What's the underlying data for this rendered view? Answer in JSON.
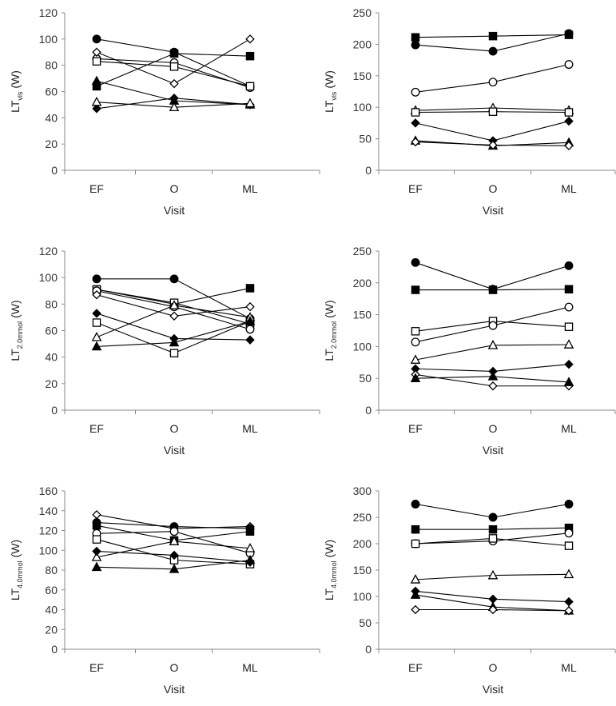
{
  "figure": {
    "categories": [
      "EF",
      "O",
      "ML"
    ]
  },
  "chart_data": [
    {
      "type": "line",
      "panel": "top-left",
      "ylabel_main": "LT",
      "ylabel_sub": "vis",
      "ylabel_unit": " (W)",
      "xlabel": "Visit",
      "ylim": [
        0,
        120
      ],
      "yticks": [
        "0",
        "20",
        "40",
        "60",
        "80",
        "100",
        "120"
      ],
      "categories": [
        "EF",
        "O",
        "ML"
      ],
      "series": [
        {
          "name": "filled-circle",
          "marker": "circle",
          "filled": true,
          "values": [
            100,
            90,
            64
          ]
        },
        {
          "name": "filled-square",
          "marker": "square",
          "filled": true,
          "values": [
            64,
            89,
            87
          ]
        },
        {
          "name": "open-circle",
          "marker": "circle",
          "filled": false,
          "values": [
            85,
            82,
            63
          ]
        },
        {
          "name": "open-square",
          "marker": "square",
          "filled": false,
          "values": [
            83,
            79,
            64
          ]
        },
        {
          "name": "open-diamond",
          "marker": "diamond",
          "filled": false,
          "values": [
            90,
            66,
            100
          ]
        },
        {
          "name": "filled-diamond",
          "marker": "diamond",
          "filled": true,
          "values": [
            47,
            55,
            50
          ]
        },
        {
          "name": "filled-triangle",
          "marker": "triangle",
          "filled": true,
          "values": [
            68,
            53,
            50
          ]
        },
        {
          "name": "open-triangle",
          "marker": "triangle",
          "filled": false,
          "values": [
            52,
            48,
            51
          ]
        }
      ]
    },
    {
      "type": "line",
      "panel": "top-right",
      "ylabel_main": "LT",
      "ylabel_sub": "vis",
      "ylabel_unit": " (W)",
      "xlabel": "Visit",
      "ylim": [
        0,
        250
      ],
      "yticks": [
        "0",
        "50",
        "100",
        "150",
        "200",
        "250"
      ],
      "categories": [
        "EF",
        "O",
        "ML"
      ],
      "series": [
        {
          "name": "filled-square",
          "marker": "square",
          "filled": true,
          "values": [
            211,
            213,
            215
          ]
        },
        {
          "name": "filled-circle",
          "marker": "circle",
          "filled": true,
          "values": [
            199,
            189,
            217
          ]
        },
        {
          "name": "open-circle",
          "marker": "circle",
          "filled": false,
          "values": [
            124,
            140,
            168
          ]
        },
        {
          "name": "open-triangle",
          "marker": "triangle",
          "filled": false,
          "values": [
            95,
            99,
            95
          ]
        },
        {
          "name": "open-square",
          "marker": "square",
          "filled": false,
          "values": [
            92,
            93,
            92
          ]
        },
        {
          "name": "filled-diamond",
          "marker": "diamond",
          "filled": true,
          "values": [
            75,
            47,
            78
          ]
        },
        {
          "name": "filled-triangle",
          "marker": "triangle",
          "filled": true,
          "values": [
            47,
            39,
            44
          ]
        },
        {
          "name": "open-diamond",
          "marker": "diamond",
          "filled": false,
          "values": [
            45,
            40,
            39
          ]
        }
      ]
    },
    {
      "type": "line",
      "panel": "middle-left",
      "ylabel_main": "LT",
      "ylabel_sub": "2.0mmol",
      "ylabel_unit": " (W)",
      "xlabel": "Visit",
      "ylim": [
        0,
        120
      ],
      "yticks": [
        "0",
        "20",
        "40",
        "60",
        "80",
        "100",
        "120"
      ],
      "categories": [
        "EF",
        "O",
        "ML"
      ],
      "series": [
        {
          "name": "filled-circle",
          "marker": "circle",
          "filled": true,
          "values": [
            99,
            99,
            69
          ]
        },
        {
          "name": "filled-square",
          "marker": "square",
          "filled": true,
          "values": [
            91,
            80,
            92
          ]
        },
        {
          "name": "open-square",
          "marker": "square",
          "filled": false,
          "values": [
            91,
            81,
            65
          ]
        },
        {
          "name": "open-circle",
          "marker": "circle",
          "filled": false,
          "values": [
            90,
            78,
            61
          ]
        },
        {
          "name": "open-diamond",
          "marker": "diamond",
          "filled": false,
          "values": [
            87,
            71,
            78
          ]
        },
        {
          "name": "filled-diamond",
          "marker": "diamond",
          "filled": true,
          "values": [
            73,
            54,
            53
          ]
        },
        {
          "name": "open-square-2",
          "marker": "square",
          "filled": false,
          "values": [
            66,
            43,
            67
          ]
        },
        {
          "name": "open-triangle",
          "marker": "triangle",
          "filled": false,
          "values": [
            55,
            79,
            70
          ]
        },
        {
          "name": "filled-triangle",
          "marker": "triangle",
          "filled": true,
          "values": [
            48,
            51,
            67
          ]
        }
      ]
    },
    {
      "type": "line",
      "panel": "middle-right",
      "ylabel_main": "LT",
      "ylabel_sub": "2.0mmol",
      "ylabel_unit": " (W)",
      "xlabel": "Visit",
      "ylim": [
        0,
        250
      ],
      "yticks": [
        "0",
        "50",
        "100",
        "150",
        "200",
        "250"
      ],
      "categories": [
        "EF",
        "O",
        "ML"
      ],
      "series": [
        {
          "name": "filled-circle",
          "marker": "circle",
          "filled": true,
          "values": [
            232,
            190,
            227
          ]
        },
        {
          "name": "filled-square",
          "marker": "square",
          "filled": true,
          "values": [
            189,
            189,
            190
          ]
        },
        {
          "name": "open-square",
          "marker": "square",
          "filled": false,
          "values": [
            124,
            140,
            131
          ]
        },
        {
          "name": "open-circle",
          "marker": "circle",
          "filled": false,
          "values": [
            107,
            133,
            162
          ]
        },
        {
          "name": "open-triangle",
          "marker": "triangle",
          "filled": false,
          "values": [
            79,
            102,
            103
          ]
        },
        {
          "name": "filled-diamond",
          "marker": "diamond",
          "filled": true,
          "values": [
            65,
            61,
            72
          ]
        },
        {
          "name": "open-diamond",
          "marker": "diamond",
          "filled": false,
          "values": [
            56,
            38,
            38
          ]
        },
        {
          "name": "filled-triangle",
          "marker": "triangle",
          "filled": true,
          "values": [
            50,
            53,
            44
          ]
        }
      ]
    },
    {
      "type": "line",
      "panel": "bottom-left",
      "ylabel_main": "LT",
      "ylabel_sub": "4.0mmol",
      "ylabel_unit": " (W)",
      "xlabel": "Visit",
      "ylim": [
        0,
        160
      ],
      "yticks": [
        "0",
        "20",
        "40",
        "60",
        "80",
        "100",
        "120",
        "140",
        "160"
      ],
      "categories": [
        "EF",
        "O",
        "ML"
      ],
      "series": [
        {
          "name": "open-diamond",
          "marker": "diamond",
          "filled": false,
          "values": [
            136,
            122,
            124
          ]
        },
        {
          "name": "filled-circle",
          "marker": "circle",
          "filled": true,
          "values": [
            128,
            124,
            122
          ]
        },
        {
          "name": "filled-square",
          "marker": "square",
          "filled": true,
          "values": [
            125,
            110,
            119
          ]
        },
        {
          "name": "open-circle",
          "marker": "circle",
          "filled": false,
          "values": [
            117,
            119,
            97
          ]
        },
        {
          "name": "open-square",
          "marker": "square",
          "filled": false,
          "values": [
            111,
            90,
            86
          ]
        },
        {
          "name": "open-triangle",
          "marker": "triangle",
          "filled": false,
          "values": [
            93,
            109,
            102
          ]
        },
        {
          "name": "filled-diamond",
          "marker": "diamond",
          "filled": true,
          "values": [
            99,
            95,
            88
          ]
        },
        {
          "name": "filled-triangle",
          "marker": "triangle",
          "filled": true,
          "values": [
            83,
            81,
            90
          ]
        }
      ]
    },
    {
      "type": "line",
      "panel": "bottom-right",
      "ylabel_main": "LT",
      "ylabel_sub": "4.0mmol",
      "ylabel_unit": " (W)",
      "xlabel": "Visit",
      "ylim": [
        0,
        300
      ],
      "yticks": [
        "0",
        "50",
        "100",
        "150",
        "200",
        "250",
        "300"
      ],
      "categories": [
        "EF",
        "O",
        "ML"
      ],
      "series": [
        {
          "name": "filled-circle",
          "marker": "circle",
          "filled": true,
          "values": [
            275,
            250,
            275
          ]
        },
        {
          "name": "filled-square",
          "marker": "square",
          "filled": true,
          "values": [
            227,
            227,
            230
          ]
        },
        {
          "name": "open-circle",
          "marker": "circle",
          "filled": false,
          "values": [
            200,
            205,
            220
          ]
        },
        {
          "name": "open-square",
          "marker": "square",
          "filled": false,
          "values": [
            200,
            210,
            196
          ]
        },
        {
          "name": "open-triangle",
          "marker": "triangle",
          "filled": false,
          "values": [
            132,
            140,
            142
          ]
        },
        {
          "name": "filled-diamond",
          "marker": "diamond",
          "filled": true,
          "values": [
            110,
            95,
            90
          ]
        },
        {
          "name": "filled-triangle",
          "marker": "triangle",
          "filled": true,
          "values": [
            103,
            80,
            73
          ]
        },
        {
          "name": "open-diamond",
          "marker": "diamond",
          "filled": false,
          "values": [
            75,
            75,
            73
          ]
        }
      ]
    }
  ]
}
